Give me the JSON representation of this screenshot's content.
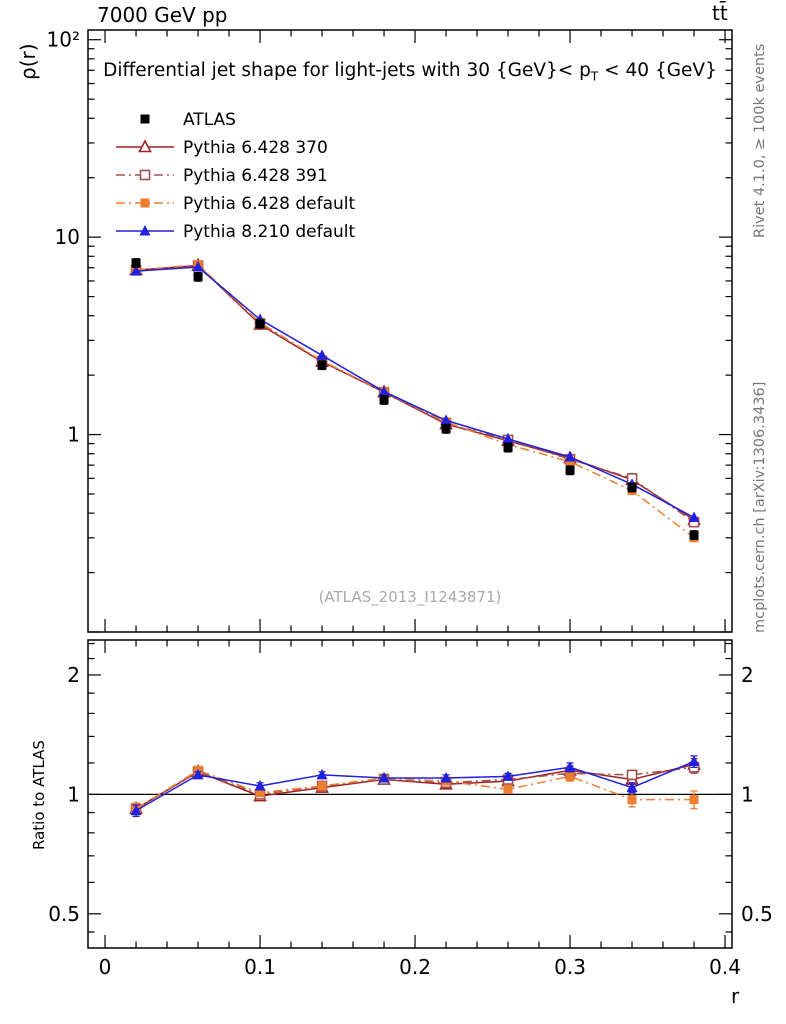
{
  "header": {
    "left": "7000 GeV pp",
    "right": "tt̄"
  },
  "main": {
    "title_prefix": "Differential jet shape for light-jets with 30 {GeV}< p",
    "title_sub": "T",
    "title_suffix": " < 40 {GeV}",
    "ylabel": "ρ(r)",
    "watermark": "(ATLAS_2013_I1243871)"
  },
  "ratio": {
    "ylabel": "Ratio to ATLAS"
  },
  "xaxis": {
    "label": "r"
  },
  "side_notes": {
    "top": "Rivet 4.1.0, ≥ 100k events",
    "bottom": "mcplots.cern.ch [arXiv:1306.3436]"
  },
  "chart_data": {
    "type": "line",
    "title": "Differential jet shape for light-jets with 30 {GeV}< p_T < 40 {GeV}",
    "xlabel": "r",
    "ylabel": "ρ(r)",
    "ylabel_ratio": "Ratio to ATLAS",
    "legend_position": "top-left",
    "grid": false,
    "x": [
      0.02,
      0.06,
      0.1,
      0.14,
      0.18,
      0.22,
      0.26,
      0.3,
      0.34,
      0.38
    ],
    "series": [
      {
        "name": "ATLAS",
        "color": "#000000",
        "marker": "square-filled",
        "line": "none",
        "values": [
          7.4,
          6.3,
          3.65,
          2.25,
          1.5,
          1.07,
          0.86,
          0.66,
          0.54,
          0.31
        ],
        "err_frac": 0.05
      },
      {
        "name": "Pythia 6.428 370",
        "color": "#a02020",
        "marker": "triangle-open",
        "line": "solid",
        "values": [
          6.81,
          7.18,
          3.61,
          2.34,
          1.64,
          1.13,
          0.93,
          0.76,
          0.59,
          0.37
        ],
        "ratio": [
          0.92,
          1.14,
          0.99,
          1.04,
          1.09,
          1.06,
          1.08,
          1.15,
          1.09,
          1.19
        ],
        "ratio_err": [
          0.03,
          0.02,
          0.02,
          0.02,
          0.02,
          0.02,
          0.02,
          0.03,
          0.03,
          0.04
        ]
      },
      {
        "name": "Pythia 6.428 391",
        "color": "#a05050",
        "marker": "square-open",
        "line": "dashdot",
        "values": [
          6.81,
          7.18,
          3.65,
          2.36,
          1.64,
          1.14,
          0.94,
          0.75,
          0.6,
          0.36
        ],
        "ratio": [
          0.92,
          1.14,
          1.0,
          1.05,
          1.09,
          1.07,
          1.09,
          1.13,
          1.12,
          1.17
        ],
        "ratio_err": [
          0.03,
          0.02,
          0.02,
          0.02,
          0.02,
          0.02,
          0.02,
          0.03,
          0.03,
          0.04
        ]
      },
      {
        "name": "Pythia 6.428 default",
        "color": "#ef7d2e",
        "marker": "square-filled",
        "line": "dashdot",
        "values": [
          6.81,
          7.25,
          3.69,
          2.36,
          1.65,
          1.16,
          0.89,
          0.73,
          0.52,
          0.3
        ],
        "ratio": [
          0.92,
          1.15,
          1.01,
          1.05,
          1.1,
          1.08,
          1.03,
          1.11,
          0.97,
          0.97
        ],
        "ratio_err": [
          0.03,
          0.02,
          0.02,
          0.02,
          0.02,
          0.02,
          0.02,
          0.03,
          0.04,
          0.05
        ]
      },
      {
        "name": "Pythia 8.210 default",
        "color": "#2020dd",
        "marker": "triangle-filled",
        "line": "solid",
        "values": [
          6.73,
          7.06,
          3.83,
          2.52,
          1.65,
          1.18,
          0.95,
          0.77,
          0.56,
          0.38
        ],
        "ratio": [
          0.91,
          1.12,
          1.05,
          1.12,
          1.1,
          1.1,
          1.11,
          1.17,
          1.04,
          1.21
        ],
        "ratio_err": [
          0.03,
          0.02,
          0.02,
          0.02,
          0.02,
          0.02,
          0.02,
          0.03,
          0.03,
          0.04
        ]
      }
    ],
    "axes": {
      "x": {
        "min": -0.011,
        "max": 0.4045,
        "major_ticks": [
          0,
          0.1,
          0.2,
          0.3,
          0.4
        ],
        "tick_labels": [
          "0",
          "0.1",
          "0.2",
          "0.3",
          "0.4"
        ],
        "minor_step": 0.02
      },
      "y_main": {
        "scale": "log",
        "min": 0.1,
        "max": 112,
        "ticks": [
          {
            "v": 100,
            "label": "10²"
          },
          {
            "v": 10,
            "label": "10"
          },
          {
            "v": 1,
            "label": "1"
          }
        ]
      },
      "y_ratio": {
        "scale": "log",
        "min": 0.41,
        "max": 2.45,
        "ref_line": 1,
        "ticks": [
          {
            "v": 2,
            "label": "2"
          },
          {
            "v": 1,
            "label": "1"
          },
          {
            "v": 0.5,
            "label": "0.5"
          }
        ],
        "minor_ticks": [
          0.45,
          0.6,
          0.7,
          0.8,
          0.9,
          1.2,
          1.4,
          1.6,
          1.8,
          2.2,
          2.4
        ]
      }
    },
    "watermark": "(ATLAS_2013_I1243871)"
  }
}
